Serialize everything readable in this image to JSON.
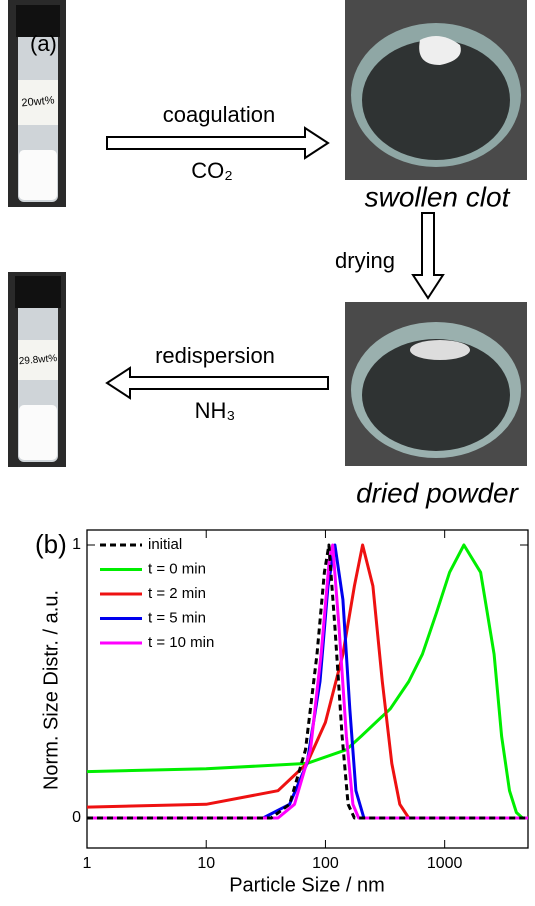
{
  "panel_a": {
    "label": "(a)",
    "vial_1_label": "20wt%",
    "vial_2_label": "29.8wt%",
    "step_1": {
      "above": "coagulation",
      "below": "CO₂"
    },
    "product_1": "swollen clot",
    "step_2": "drying",
    "product_2": "dried powder",
    "step_3": {
      "above": "redispersion",
      "below": "NH₃"
    }
  },
  "chart_data": {
    "type": "line",
    "panel_label": "(b)",
    "x_label": "Particle Size / nm",
    "y_label": "Norm. Size Distr. / a.u.",
    "x_scale": "log",
    "xlim": [
      1,
      5000
    ],
    "ylim": [
      -0.11,
      1.055
    ],
    "xticks": [
      1,
      10,
      100,
      1000
    ],
    "yticks": [
      0,
      1
    ],
    "legend": "upper left",
    "series": [
      {
        "name": "initial",
        "color": "#000000",
        "dash": true,
        "x": [
          1,
          35,
          50,
          68,
          85,
          98,
          107,
          120,
          138,
          155,
          175,
          5000
        ],
        "values": [
          0,
          0,
          0.05,
          0.25,
          0.6,
          0.9,
          1,
          0.7,
          0.3,
          0.05,
          0,
          0
        ]
      },
      {
        "name": "t = 0 min",
        "color": "#00ee00",
        "dash": false,
        "x": [
          1,
          10,
          70,
          150,
          200,
          350,
          500,
          650,
          850,
          1100,
          1450,
          2000,
          2600,
          3000,
          3500,
          4000,
          4500,
          5000
        ],
        "values": [
          0.17,
          0.18,
          0.2,
          0.25,
          0.3,
          0.4,
          0.5,
          0.6,
          0.75,
          0.9,
          1,
          0.9,
          0.6,
          0.3,
          0.1,
          0.02,
          0,
          0
        ]
      },
      {
        "name": "t = 2 min",
        "color": "#ee1111",
        "dash": false,
        "x": [
          1,
          10,
          40,
          70,
          100,
          140,
          175,
          205,
          250,
          300,
          360,
          420,
          500,
          5000
        ],
        "values": [
          0.04,
          0.05,
          0.1,
          0.2,
          0.35,
          0.6,
          0.85,
          1,
          0.85,
          0.5,
          0.2,
          0.05,
          0,
          0
        ]
      },
      {
        "name": "t = 5 min",
        "color": "#0000ee",
        "dash": false,
        "x": [
          1,
          30,
          50,
          70,
          90,
          105,
          120,
          140,
          160,
          180,
          210,
          5000
        ],
        "values": [
          0,
          0,
          0.05,
          0.2,
          0.5,
          0.85,
          1,
          0.8,
          0.4,
          0.1,
          0,
          0
        ]
      },
      {
        "name": "t = 10 min",
        "color": "#ff00ff",
        "dash": false,
        "x": [
          1,
          40,
          55,
          75,
          92,
          108,
          115,
          130,
          150,
          170,
          190,
          5000
        ],
        "values": [
          0,
          0,
          0.05,
          0.25,
          0.6,
          0.95,
          1,
          0.7,
          0.3,
          0.05,
          0,
          0
        ]
      }
    ]
  }
}
